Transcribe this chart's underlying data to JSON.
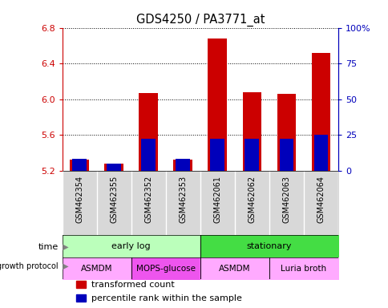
{
  "title": "GDS4250 / PA3771_at",
  "samples": [
    "GSM462354",
    "GSM462355",
    "GSM462352",
    "GSM462353",
    "GSM462061",
    "GSM462062",
    "GSM462063",
    "GSM462064"
  ],
  "transformed_counts": [
    5.32,
    5.28,
    6.07,
    5.32,
    6.68,
    6.08,
    6.06,
    6.52
  ],
  "percentile_ranks_pct": [
    8,
    5,
    22,
    8,
    22,
    22,
    22,
    25
  ],
  "ylim_left": [
    5.2,
    6.8
  ],
  "ylim_right": [
    0,
    100
  ],
  "yticks_left": [
    5.2,
    5.6,
    6.0,
    6.4,
    6.8
  ],
  "yticks_right": [
    0,
    25,
    50,
    75,
    100
  ],
  "ytick_labels_right": [
    "0",
    "25",
    "50",
    "75",
    "100%"
  ],
  "bar_base": 5.2,
  "time_groups": [
    {
      "label": "early log",
      "start": 0,
      "end": 4,
      "color": "#bbffbb"
    },
    {
      "label": "stationary",
      "start": 4,
      "end": 8,
      "color": "#44dd44"
    }
  ],
  "protocol_groups": [
    {
      "label": "ASMDM",
      "start": 0,
      "end": 2,
      "color": "#ffaaff"
    },
    {
      "label": "MOPS-glucose",
      "start": 2,
      "end": 4,
      "color": "#ee55ee"
    },
    {
      "label": "ASMDM",
      "start": 4,
      "end": 6,
      "color": "#ffaaff"
    },
    {
      "label": "Luria broth",
      "start": 6,
      "end": 8,
      "color": "#ffaaff"
    }
  ],
  "red_color": "#cc0000",
  "blue_color": "#0000bb",
  "bar_width": 0.55,
  "legend_items": [
    {
      "color": "#cc0000",
      "label": "transformed count"
    },
    {
      "color": "#0000bb",
      "label": "percentile rank within the sample"
    }
  ],
  "left_axis_color": "#cc0000",
  "right_axis_color": "#0000bb"
}
